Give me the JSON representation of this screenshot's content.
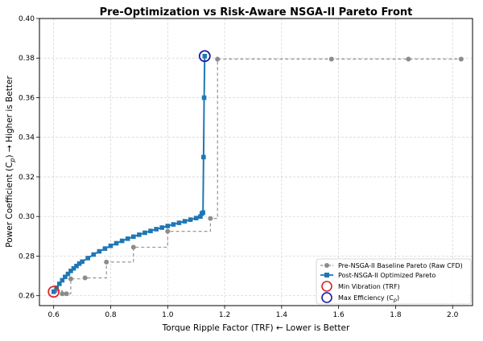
{
  "chart_data": {
    "type": "line",
    "title": "Pre-Optimization vs Risk-Aware NSGA-II Pareto Front",
    "xlabel": "Torque Ripple Factor (TRF) ← Lower is Better",
    "ylabel_prefix": "Power Coefficient (C",
    "ylabel_sub": "p",
    "ylabel_suffix": ") → Higher is Better",
    "xlim": [
      0.55,
      2.07
    ],
    "ylim": [
      0.255,
      0.4
    ],
    "xticks": [
      0.6,
      0.8,
      1.0,
      1.2,
      1.4,
      1.6,
      1.8,
      2.0
    ],
    "xtick_labels": [
      "0.6",
      "0.8",
      "1.0",
      "1.2",
      "1.4",
      "1.6",
      "1.8",
      "2.0"
    ],
    "yticks": [
      0.26,
      0.28,
      0.3,
      0.32,
      0.34,
      0.36,
      0.38,
      0.4
    ],
    "ytick_labels": [
      "0.26",
      "0.28",
      "0.30",
      "0.32",
      "0.34",
      "0.36",
      "0.38",
      "0.40"
    ],
    "grid": true,
    "legend_position": "lower-right",
    "series": [
      {
        "name": "Pre-NSGA-II Baseline Pareto (Raw CFD)",
        "color": "#8c8c8c",
        "style": "dashed-step",
        "marker": "circle",
        "x": [
          0.606,
          0.63,
          0.645,
          0.66,
          0.71,
          0.785,
          0.88,
          1.0,
          1.15,
          1.175,
          1.575,
          1.845,
          2.03
        ],
        "y": [
          0.2625,
          0.261,
          0.261,
          0.2685,
          0.269,
          0.277,
          0.2845,
          0.2925,
          0.299,
          0.3795,
          0.3795,
          0.3795,
          0.3795
        ]
      },
      {
        "name": "Post-NSGA-II Optimized Pareto",
        "color": "#1f77b4",
        "style": "solid",
        "marker": "square",
        "x": [
          0.6,
          0.61,
          0.62,
          0.63,
          0.64,
          0.65,
          0.66,
          0.67,
          0.68,
          0.69,
          0.7,
          0.72,
          0.74,
          0.76,
          0.78,
          0.8,
          0.82,
          0.84,
          0.86,
          0.88,
          0.9,
          0.92,
          0.94,
          0.96,
          0.98,
          1.0,
          1.02,
          1.04,
          1.06,
          1.08,
          1.1,
          1.115,
          1.12,
          1.124,
          1.126,
          1.128,
          1.13
        ],
        "y": [
          0.262,
          0.264,
          0.266,
          0.2678,
          0.2695,
          0.271,
          0.2725,
          0.2738,
          0.275,
          0.2762,
          0.2772,
          0.279,
          0.2808,
          0.2824,
          0.2838,
          0.2852,
          0.2865,
          0.2877,
          0.2888,
          0.2898,
          0.2908,
          0.2918,
          0.2927,
          0.2936,
          0.2944,
          0.2952,
          0.296,
          0.2968,
          0.2976,
          0.2984,
          0.2992,
          0.3,
          0.3015,
          0.302,
          0.33,
          0.36,
          0.381
        ]
      }
    ],
    "highlights": [
      {
        "name": "Min Vibration (TRF)",
        "x": 0.6,
        "y": 0.262,
        "color": "#d62728"
      },
      {
        "name": "Max Efficiency (C",
        "name_sub": "p",
        "name_suffix": ")",
        "x": 1.13,
        "y": 0.381,
        "color": "#1a1aa6"
      }
    ]
  }
}
